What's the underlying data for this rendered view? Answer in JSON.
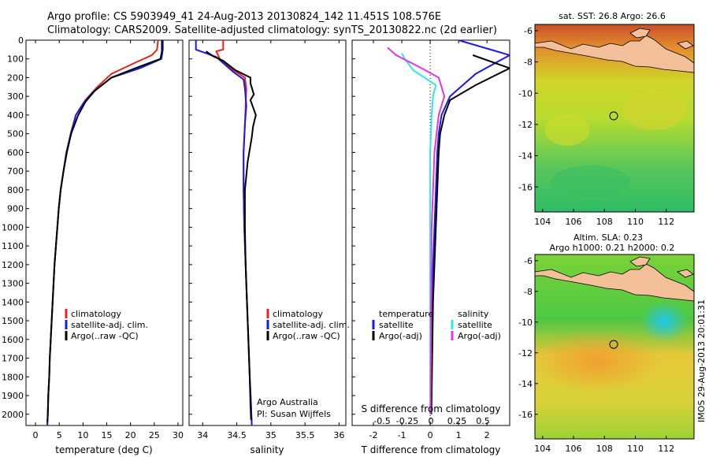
{
  "header": {
    "line1": "Argo profile: CS 5903949_41 24-Aug-2013 20130824_142 11.451S 108.576E",
    "line2": "Climatology: CARS2009. Satellite-adjusted climatology: synTS_20130822.nc (2d earlier)"
  },
  "colors": {
    "climatology": "#e8231b",
    "satellite": "#1a1ae6",
    "argo": "#000000",
    "satellite_s": "#33e6e6",
    "argo_s": "#e633e6"
  },
  "chart_data": [
    {
      "type": "line",
      "id": "temperature",
      "xlabel": "temperature (deg C)",
      "ylabel": "",
      "xlim": [
        -2,
        31
      ],
      "ylim": [
        2060,
        0
      ],
      "xticks": [
        0,
        5,
        10,
        15,
        20,
        25,
        30
      ],
      "yticks": [
        0,
        100,
        200,
        300,
        400,
        500,
        600,
        700,
        800,
        900,
        1000,
        1100,
        1200,
        1300,
        1400,
        1500,
        1600,
        1700,
        1800,
        1900,
        2000
      ],
      "legend": [
        "climatology",
        "satellite-adj. clim.",
        "Argo(..raw -QC)"
      ],
      "series": [
        {
          "name": "climatology",
          "color": "climatology",
          "points": [
            [
              25.8,
              0
            ],
            [
              25.6,
              50
            ],
            [
              24.5,
              80
            ],
            [
              21,
              120
            ],
            [
              16,
              180
            ],
            [
              13,
              250
            ],
            [
              10.5,
              320
            ],
            [
              8.5,
              400
            ],
            [
              7.5,
              500
            ],
            [
              6.5,
              600
            ],
            [
              5.9,
              700
            ],
            [
              5.3,
              800
            ],
            [
              4.9,
              900
            ],
            [
              4.6,
              1000
            ],
            [
              4.3,
              1100
            ],
            [
              4,
              1200
            ],
            [
              3.8,
              1300
            ],
            [
              3.6,
              1400
            ],
            [
              3.4,
              1500
            ],
            [
              3.2,
              1600
            ],
            [
              3,
              1700
            ],
            [
              2.9,
              1800
            ],
            [
              2.7,
              1900
            ],
            [
              2.6,
              2000
            ],
            [
              2.5,
              2060
            ]
          ]
        },
        {
          "name": "satellite-adj. clim.",
          "color": "satellite",
          "points": [
            [
              26.8,
              0
            ],
            [
              26.8,
              50
            ],
            [
              26.5,
              100
            ],
            [
              22,
              150
            ],
            [
              16,
              200
            ],
            [
              12,
              280
            ],
            [
              10,
              340
            ],
            [
              8.5,
              400
            ],
            [
              7.4,
              500
            ],
            [
              6.5,
              600
            ],
            [
              5.9,
              700
            ],
            [
              5.3,
              800
            ],
            [
              4.9,
              900
            ],
            [
              4.6,
              1000
            ],
            [
              4.3,
              1100
            ],
            [
              4,
              1200
            ],
            [
              3.8,
              1300
            ],
            [
              3.6,
              1400
            ],
            [
              3.4,
              1500
            ],
            [
              3.2,
              1600
            ],
            [
              3,
              1700
            ],
            [
              2.9,
              1800
            ],
            [
              2.7,
              1900
            ],
            [
              2.6,
              2000
            ],
            [
              2.5,
              2060
            ]
          ]
        },
        {
          "name": "Argo(..raw -QC)",
          "color": "argo",
          "points": [
            [
              26.6,
              0
            ],
            [
              26.6,
              60
            ],
            [
              26.3,
              100
            ],
            [
              21,
              150
            ],
            [
              16,
              200
            ],
            [
              12.5,
              270
            ],
            [
              10.5,
              330
            ],
            [
              9,
              400
            ],
            [
              7.5,
              500
            ],
            [
              6.6,
              600
            ],
            [
              5.9,
              700
            ],
            [
              5.3,
              800
            ],
            [
              4.9,
              900
            ],
            [
              4.6,
              1000
            ],
            [
              4.3,
              1100
            ],
            [
              4,
              1200
            ],
            [
              3.8,
              1300
            ],
            [
              3.6,
              1400
            ],
            [
              3.4,
              1500
            ],
            [
              3.2,
              1600
            ],
            [
              3,
              1700
            ],
            [
              2.9,
              1800
            ],
            [
              2.7,
              1900
            ],
            [
              2.6,
              2000
            ],
            [
              2.5,
              2040
            ]
          ]
        }
      ]
    },
    {
      "type": "line",
      "id": "salinity",
      "xlabel": "salinity",
      "xlim": [
        33.8,
        36.1
      ],
      "ylim": [
        2060,
        0
      ],
      "xticks": [
        34,
        34.5,
        35,
        35.5,
        36
      ],
      "legend": [
        "climatology",
        "satellite-adj. clim.",
        "Argo(..raw -QC)"
      ],
      "annotation": [
        "Argo Australia",
        "PI: Susan Wijffels"
      ],
      "series": [
        {
          "name": "climatology",
          "color": "climatology",
          "points": [
            [
              34.3,
              0
            ],
            [
              34.3,
              50
            ],
            [
              34.2,
              60
            ],
            [
              34.25,
              100
            ],
            [
              34.45,
              160
            ],
            [
              34.62,
              200
            ],
            [
              34.64,
              260
            ],
            [
              34.63,
              350
            ],
            [
              34.62,
              450
            ],
            [
              34.6,
              600
            ],
            [
              34.6,
              800
            ],
            [
              34.61,
              1000
            ],
            [
              34.63,
              1200
            ],
            [
              34.65,
              1400
            ],
            [
              34.67,
              1600
            ],
            [
              34.69,
              1800
            ],
            [
              34.71,
              1950
            ],
            [
              34.72,
              2060
            ]
          ]
        },
        {
          "name": "satellite-adj. clim.",
          "color": "satellite",
          "points": [
            [
              33.9,
              0
            ],
            [
              33.9,
              50
            ],
            [
              34.05,
              70
            ],
            [
              34.2,
              90
            ],
            [
              34.45,
              170
            ],
            [
              34.6,
              210
            ],
            [
              34.62,
              260
            ],
            [
              34.64,
              350
            ],
            [
              34.62,
              450
            ],
            [
              34.6,
              600
            ],
            [
              34.6,
              800
            ],
            [
              34.61,
              1000
            ],
            [
              34.63,
              1200
            ],
            [
              34.65,
              1400
            ],
            [
              34.67,
              1600
            ],
            [
              34.69,
              1800
            ],
            [
              34.71,
              1950
            ],
            [
              34.72,
              2060
            ]
          ]
        },
        {
          "name": "Argo(..raw -QC)",
          "color": "argo",
          "points": [
            [
              34.05,
              60
            ],
            [
              34.15,
              85
            ],
            [
              34.3,
              110
            ],
            [
              34.48,
              160
            ],
            [
              34.7,
              200
            ],
            [
              34.7,
              230
            ],
            [
              34.75,
              290
            ],
            [
              34.7,
              320
            ],
            [
              34.78,
              400
            ],
            [
              34.74,
              460
            ],
            [
              34.72,
              520
            ],
            [
              34.66,
              650
            ],
            [
              34.62,
              800
            ],
            [
              34.62,
              1000
            ],
            [
              34.63,
              1200
            ],
            [
              34.65,
              1400
            ],
            [
              34.67,
              1600
            ],
            [
              34.69,
              1800
            ],
            [
              34.7,
              1950
            ],
            [
              34.71,
              2030
            ]
          ]
        }
      ]
    },
    {
      "type": "line",
      "id": "difference",
      "xlabel": "T difference from climatology",
      "xlabel_top": "S difference from climatology",
      "xlim": [
        -2.75,
        2.8
      ],
      "ylim": [
        2060,
        0
      ],
      "xticks": [
        -2,
        -1,
        0,
        1,
        2
      ],
      "xticks_s": [
        "-0.5",
        "-0.25",
        "0",
        "0.25",
        "0.5"
      ],
      "legend_t": [
        "temperature",
        "satellite",
        "Argo(-adj)"
      ],
      "legend_s": [
        "salinity",
        "satellite",
        "Argo(-adj)"
      ],
      "series": [
        {
          "name": "temperature satellite",
          "color": "satellite",
          "points": [
            [
              1,
              0
            ],
            [
              2.8,
              80
            ],
            [
              1.6,
              180
            ],
            [
              0.7,
              300
            ],
            [
              0.4,
              400
            ],
            [
              0.3,
              500
            ],
            [
              0.25,
              600
            ],
            [
              0.2,
              800
            ],
            [
              0.15,
              1000
            ],
            [
              0.1,
              1200
            ],
            [
              0.08,
              1400
            ],
            [
              0.06,
              1600
            ],
            [
              0.05,
              1800
            ],
            [
              0.04,
              2000
            ]
          ]
        },
        {
          "name": "temperature Argo(-adj)",
          "color": "argo",
          "points": [
            [
              1.5,
              80
            ],
            [
              2.8,
              150
            ],
            [
              1.6,
              240
            ],
            [
              0.7,
              320
            ],
            [
              0.5,
              400
            ],
            [
              0.35,
              500
            ],
            [
              0.3,
              600
            ],
            [
              0.25,
              800
            ],
            [
              0.2,
              1000
            ],
            [
              0.15,
              1200
            ],
            [
              0.1,
              1400
            ],
            [
              0.08,
              1600
            ],
            [
              0.06,
              1800
            ],
            [
              0.04,
              2000
            ]
          ]
        },
        {
          "name": "salinity satellite",
          "color": "satellite_s",
          "points": [
            [
              -1,
              70
            ],
            [
              -0.9,
              100
            ],
            [
              -0.6,
              160
            ],
            [
              0.2,
              240
            ],
            [
              0.1,
              300
            ],
            [
              0.05,
              400
            ],
            [
              0,
              600
            ],
            [
              0,
              800
            ],
            [
              0,
              1200
            ],
            [
              0,
              1600
            ],
            [
              0,
              2000
            ]
          ]
        },
        {
          "name": "salinity Argo(-adj)",
          "color": "argo_s",
          "points": [
            [
              -1.5,
              40
            ],
            [
              -1.2,
              80
            ],
            [
              -0.3,
              150
            ],
            [
              0.3,
              200
            ],
            [
              0.5,
              300
            ],
            [
              0.3,
              400
            ],
            [
              0.15,
              600
            ],
            [
              0.1,
              800
            ],
            [
              0.05,
              1000
            ],
            [
              0.03,
              1400
            ],
            [
              0.01,
              2000
            ]
          ]
        }
      ]
    },
    {
      "type": "heatmap",
      "id": "sst-map",
      "title": "sat. SST: 26.8 Argo: 26.6",
      "xlim": [
        103.5,
        113.8
      ],
      "ylim": [
        -17.6,
        -5.6
      ],
      "xticks": [
        104,
        106,
        108,
        110,
        112
      ],
      "yticks": [
        -6,
        -8,
        -10,
        -12,
        -14,
        -16
      ],
      "marker": [
        108.6,
        -11.45
      ]
    },
    {
      "type": "heatmap",
      "id": "sla-map",
      "title": "Altim. SLA: 0.23",
      "subtitle": "Argo h1000: 0.21 h2000: 0.2",
      "xlim": [
        103.5,
        113.8
      ],
      "ylim": [
        -17.6,
        -5.6
      ],
      "xticks": [
        104,
        106,
        108,
        110,
        112
      ],
      "yticks": [
        -6,
        -8,
        -10,
        -12,
        -14,
        -16
      ],
      "marker": [
        108.6,
        -11.45
      ]
    }
  ],
  "watermark": "IMOS 29-Aug-2013 20:01:31"
}
